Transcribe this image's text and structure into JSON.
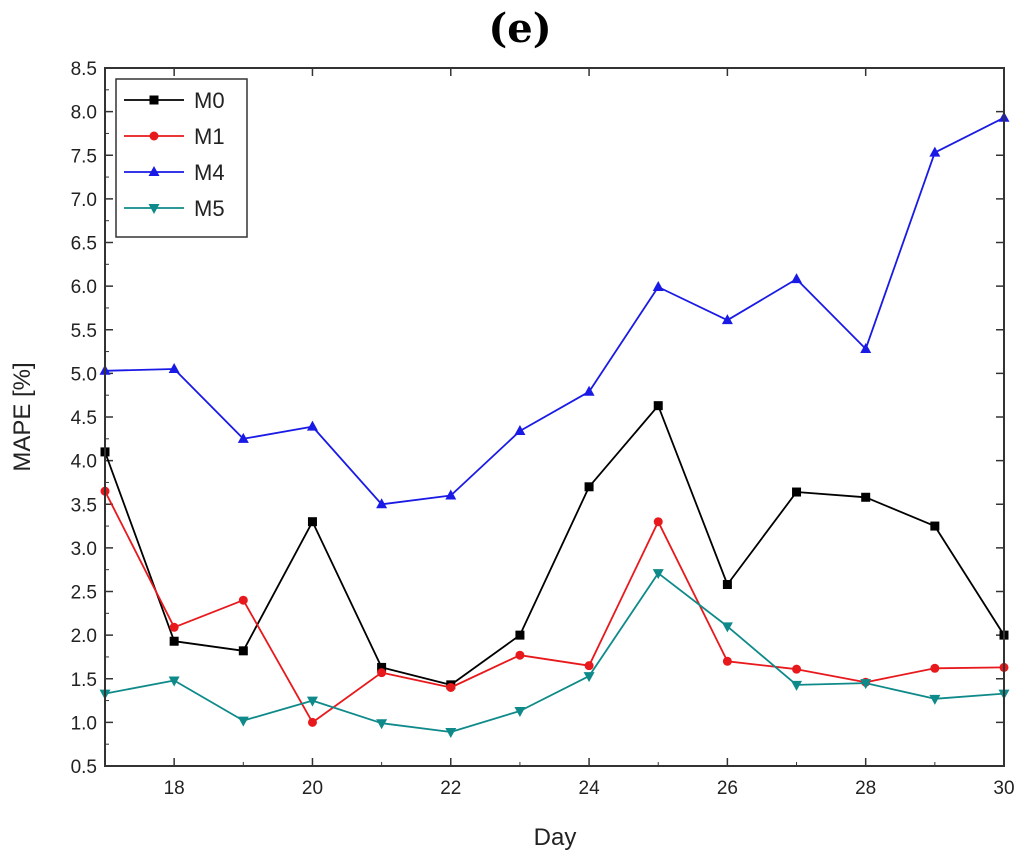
{
  "chart_data": {
    "type": "line",
    "panel_label": "(e)",
    "title": "",
    "xlabel": "Day",
    "ylabel": "MAPE [%]",
    "xlim": [
      17,
      30
    ],
    "ylim": [
      0.5,
      8.5
    ],
    "xticks": [
      18,
      20,
      22,
      24,
      26,
      28,
      30
    ],
    "yticks": [
      "0.5",
      "1.0",
      "1.5",
      "2.0",
      "2.5",
      "3.0",
      "3.5",
      "4.0",
      "4.5",
      "5.0",
      "5.5",
      "6.0",
      "6.5",
      "7.0",
      "7.5",
      "8.0",
      "8.5"
    ],
    "legend_position": "top-left",
    "x": [
      17,
      18,
      19,
      20,
      21,
      22,
      23,
      24,
      25,
      26,
      27,
      28,
      29,
      30
    ],
    "series": [
      {
        "name": "M0",
        "color": "#000000",
        "marker": "square",
        "values": [
          4.1,
          1.93,
          1.82,
          3.3,
          1.63,
          1.43,
          2.0,
          3.7,
          4.63,
          2.58,
          3.64,
          3.58,
          3.25,
          2.0
        ]
      },
      {
        "name": "M1",
        "color": "#e8191c",
        "marker": "circle",
        "values": [
          3.65,
          2.09,
          2.4,
          1.0,
          1.57,
          1.4,
          1.77,
          1.65,
          3.3,
          1.7,
          1.61,
          1.46,
          1.62,
          1.63
        ]
      },
      {
        "name": "M4",
        "color": "#1a1ae6",
        "marker": "triangle-up",
        "values": [
          5.03,
          5.05,
          4.25,
          4.39,
          3.5,
          3.6,
          4.34,
          4.79,
          5.99,
          5.61,
          6.08,
          5.28,
          7.53,
          7.93
        ]
      },
      {
        "name": "M5",
        "color": "#0f8a8a",
        "marker": "triangle-down",
        "values": [
          1.33,
          1.48,
          1.02,
          1.25,
          0.99,
          0.89,
          1.13,
          1.53,
          2.71,
          2.1,
          1.43,
          1.45,
          1.27,
          1.33
        ]
      }
    ]
  }
}
